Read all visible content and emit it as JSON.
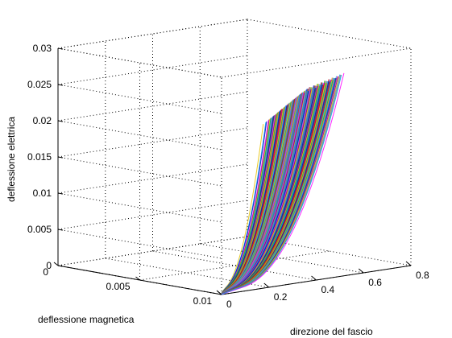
{
  "chart_data": {
    "type": "line",
    "title": "",
    "grid": true,
    "legend": "none",
    "axes": {
      "x": {
        "label": "direzione del fascio",
        "range": [
          0,
          0.8
        ],
        "ticks": [
          0,
          0.2,
          0.4,
          0.6,
          0.8
        ],
        "tick_labels": [
          "0",
          "0.2",
          "0.4",
          "0.6",
          "0.8"
        ]
      },
      "y": {
        "label": "deflessione magnetica",
        "range": [
          0,
          0.01
        ],
        "ticks": [
          0,
          0.005,
          0.01
        ],
        "tick_labels": [
          "0",
          "0.005",
          "0.01"
        ]
      },
      "z": {
        "label": "deflessione elettrica",
        "range": [
          0,
          0.03
        ],
        "ticks": [
          0,
          0.005,
          0.01,
          0.015,
          0.02,
          0.025,
          0.03
        ],
        "tick_labels": [
          "0",
          "0.005",
          "0.01",
          "0.015",
          "0.02",
          "0.025",
          "0.03"
        ]
      }
    },
    "series_description": "Many colored 3D trajectories starting near x=0, y=0.01, z=0 and fanning out with increasing z up to about 0.025 near x≈0.55–0.75",
    "bundle_colors": [
      "#e6c100",
      "#00a3e0",
      "#ff00ff",
      "#1e90ff",
      "#ff0000",
      "#00b050",
      "#0000cc",
      "#800080",
      "#808080",
      "#00ced1",
      "#ff8c00",
      "#2f4f4f"
    ],
    "trajectory_endpoints": {
      "start": {
        "x": 0.0,
        "y": 0.01,
        "z": 0.0
      },
      "end_examples": [
        {
          "x": 0.58,
          "y": 0.0045,
          "z": 0.019
        },
        {
          "x": 0.62,
          "y": 0.005,
          "z": 0.021
        },
        {
          "x": 0.66,
          "y": 0.0055,
          "z": 0.023
        },
        {
          "x": 0.7,
          "y": 0.006,
          "z": 0.024
        },
        {
          "x": 0.74,
          "y": 0.0065,
          "z": 0.025
        }
      ]
    }
  }
}
